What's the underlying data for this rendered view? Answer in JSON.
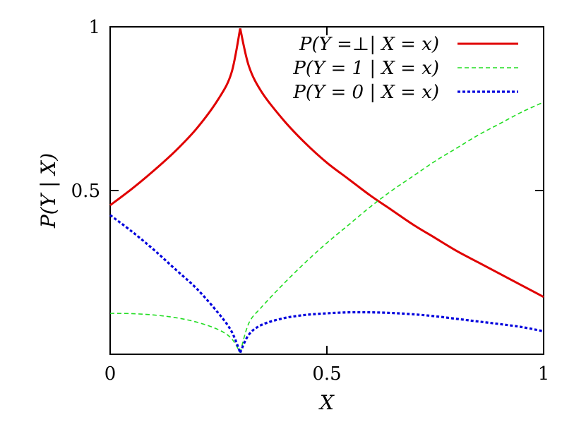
{
  "chart_data": {
    "type": "line",
    "xlabel": "X",
    "ylabel": "P(Y | X)",
    "xlim": [
      0,
      1
    ],
    "ylim": [
      0,
      1
    ],
    "x_ticks": [
      {
        "value": 0,
        "label": "0"
      },
      {
        "value": 0.5,
        "label": "0.5"
      },
      {
        "value": 1,
        "label": "1"
      }
    ],
    "y_ticks": [
      {
        "value": 0.5,
        "label": "0.5"
      },
      {
        "value": 1,
        "label": "1"
      }
    ],
    "grid": false,
    "legend_position": "top-right",
    "series": [
      {
        "name": "P(Y =⊥| X = x)",
        "color": "#e00000",
        "style": "solid",
        "x": [
          0,
          0.05,
          0.1,
          0.15,
          0.2,
          0.25,
          0.28,
          0.3,
          0.32,
          0.35,
          0.4,
          0.45,
          0.5,
          0.55,
          0.6,
          0.65,
          0.7,
          0.75,
          0.8,
          0.85,
          0.9,
          0.95,
          1.0
        ],
        "y": [
          0.455,
          0.505,
          0.56,
          0.62,
          0.69,
          0.78,
          0.86,
          0.995,
          0.88,
          0.8,
          0.715,
          0.645,
          0.585,
          0.535,
          0.485,
          0.44,
          0.395,
          0.355,
          0.315,
          0.28,
          0.245,
          0.21,
          0.175
        ]
      },
      {
        "name": "P(Y = 1 | X = x)",
        "color": "#22dd22",
        "style": "dashed",
        "x": [
          0,
          0.05,
          0.1,
          0.15,
          0.2,
          0.25,
          0.28,
          0.3,
          0.32,
          0.35,
          0.4,
          0.45,
          0.5,
          0.55,
          0.6,
          0.65,
          0.7,
          0.75,
          0.8,
          0.85,
          0.9,
          0.95,
          1.0
        ],
        "y": [
          0.125,
          0.124,
          0.12,
          0.112,
          0.098,
          0.075,
          0.048,
          0.005,
          0.095,
          0.145,
          0.215,
          0.28,
          0.34,
          0.395,
          0.45,
          0.5,
          0.545,
          0.59,
          0.63,
          0.67,
          0.705,
          0.74,
          0.77
        ]
      },
      {
        "name": "P(Y = 0 | X = x)",
        "color": "#0000dd",
        "style": "dotted",
        "x": [
          0,
          0.05,
          0.1,
          0.15,
          0.2,
          0.25,
          0.28,
          0.3,
          0.32,
          0.35,
          0.4,
          0.45,
          0.5,
          0.55,
          0.6,
          0.65,
          0.7,
          0.75,
          0.8,
          0.85,
          0.9,
          0.95,
          1.0
        ],
        "y": [
          0.425,
          0.375,
          0.32,
          0.26,
          0.2,
          0.125,
          0.07,
          0.005,
          0.06,
          0.09,
          0.11,
          0.12,
          0.125,
          0.128,
          0.128,
          0.126,
          0.122,
          0.116,
          0.108,
          0.1,
          0.092,
          0.083,
          0.07
        ]
      }
    ]
  }
}
